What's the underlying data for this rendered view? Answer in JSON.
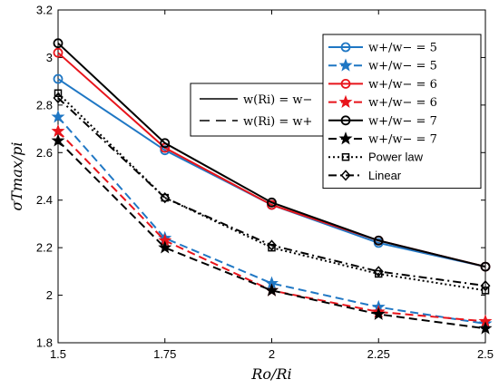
{
  "chart_data": {
    "type": "line",
    "xlabel": "Ro/Ri",
    "ylabel": "σTmax/pi",
    "xlim": [
      1.5,
      2.5
    ],
    "ylim": [
      1.8,
      3.2
    ],
    "x_ticks": [
      "1.5",
      "1.75",
      "2",
      "2.25",
      "2.5"
    ],
    "y_ticks": [
      "1.8",
      "2",
      "2.2",
      "2.4",
      "2.6",
      "2.8",
      "3",
      "3.2"
    ],
    "x": [
      1.5,
      1.75,
      2.0,
      2.25,
      2.5
    ],
    "grid": false,
    "series": [
      {
        "name": "w+/w− = 5",
        "values": [
          2.91,
          2.61,
          2.38,
          2.22,
          2.12
        ],
        "color": "#1f77c4",
        "dash": "solid",
        "marker": "circle"
      },
      {
        "name": "w+/w− = 5",
        "values": [
          2.75,
          2.24,
          2.05,
          1.95,
          1.88
        ],
        "color": "#1f77c4",
        "dash": "dashed",
        "marker": "star"
      },
      {
        "name": "w+/w− = 6",
        "values": [
          3.02,
          2.62,
          2.38,
          2.23,
          2.12
        ],
        "color": "#e8141b",
        "dash": "solid",
        "marker": "circle"
      },
      {
        "name": "w+/w− = 6",
        "values": [
          2.69,
          2.23,
          2.02,
          1.93,
          1.89
        ],
        "color": "#e8141b",
        "dash": "dashed",
        "marker": "star"
      },
      {
        "name": "w+/w− = 7",
        "values": [
          3.06,
          2.64,
          2.39,
          2.23,
          2.12
        ],
        "color": "#000000",
        "dash": "solid",
        "marker": "circle"
      },
      {
        "name": "w+/w− = 7",
        "values": [
          2.65,
          2.2,
          2.02,
          1.92,
          1.86
        ],
        "color": "#000000",
        "dash": "dashed",
        "marker": "star"
      },
      {
        "name": "Power law",
        "values": [
          2.85,
          2.41,
          2.2,
          2.09,
          2.02
        ],
        "color": "#000000",
        "dash": "dotted",
        "marker": "square"
      },
      {
        "name": "Linear",
        "values": [
          2.83,
          2.41,
          2.21,
          2.1,
          2.04
        ],
        "color": "#000000",
        "dash": "dashdot",
        "marker": "diamond"
      }
    ],
    "legend_main": {
      "placement": "top-right"
    },
    "legend_secondary": {
      "placement": "upper-middle",
      "entries": [
        {
          "label": "w(Ri) = w−",
          "dash": "solid"
        },
        {
          "label": "w(Ri) = w+",
          "dash": "dashed"
        }
      ]
    }
  }
}
